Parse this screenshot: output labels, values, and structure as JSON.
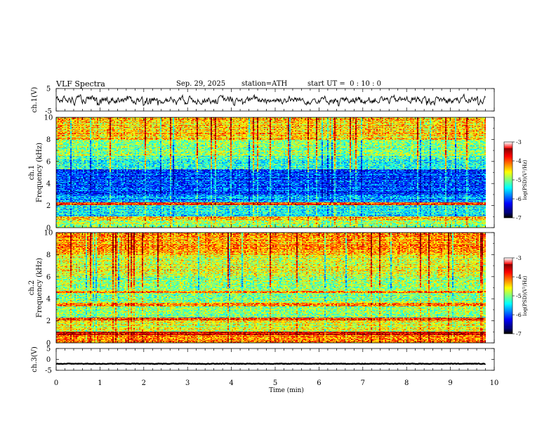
{
  "header": {
    "title": "VLF Spectra",
    "date": "Sep. 29, 2025",
    "station": "station=ATH",
    "start_ut": "start UT =  0 : 10 : 0"
  },
  "chart_data": [
    {
      "type": "line",
      "name": "ch1-waveform",
      "ylabel": "ch.1(V)",
      "ylim": [
        -5,
        5
      ],
      "yticks": [
        "5",
        "-5"
      ],
      "xlim": [
        0,
        10
      ],
      "data_extent_min": 9.8,
      "mean": 0.0,
      "amplitude": 2.0
    },
    {
      "type": "heatmap",
      "name": "ch1-spectrogram",
      "ylabel": "ch.1\nFrequency (kHz)",
      "ylim": [
        0,
        10
      ],
      "yticks": [
        "0",
        "2",
        "4",
        "6",
        "8",
        "10"
      ],
      "xlim": [
        0,
        10
      ],
      "colorbar": {
        "label": "log(PSD)(V²/Hz)",
        "range": [
          -7,
          -3
        ],
        "ticks": [
          "-3",
          "-4",
          "-5",
          "-6",
          "-7"
        ]
      },
      "bands": [
        {
          "f": [
            0.0,
            0.6
          ],
          "level": -4.8
        },
        {
          "f": [
            0.6,
            1.0
          ],
          "level": -4.2
        },
        {
          "f": [
            1.0,
            2.0
          ],
          "level": -5.5
        },
        {
          "f": [
            2.0,
            2.3
          ],
          "level": -3.8
        },
        {
          "f": [
            2.3,
            3.0
          ],
          "level": -5.9
        },
        {
          "f": [
            3.0,
            5.3
          ],
          "level": -6.2
        },
        {
          "f": [
            5.3,
            6.5
          ],
          "level": -5.3
        },
        {
          "f": [
            6.5,
            8.0
          ],
          "level": -4.9
        },
        {
          "f": [
            8.0,
            10.0
          ],
          "level": -4.3
        }
      ]
    },
    {
      "type": "heatmap",
      "name": "ch2-spectrogram",
      "ylabel": "ch.2\nFrequency (kHz)",
      "ylim": [
        0,
        10
      ],
      "yticks": [
        "0",
        "2",
        "4",
        "6",
        "8",
        "10"
      ],
      "xlim": [
        0,
        10
      ],
      "colorbar": {
        "label": "log(PSD)(V²/Hz)",
        "range": [
          -7,
          -3
        ],
        "ticks": [
          "-3",
          "-4",
          "-5",
          "-6",
          "-7"
        ]
      },
      "bands": [
        {
          "f": [
            0.0,
            0.7
          ],
          "level": -4.0
        },
        {
          "f": [
            0.7,
            1.0
          ],
          "level": -3.4
        },
        {
          "f": [
            1.0,
            2.0
          ],
          "level": -4.6
        },
        {
          "f": [
            2.0,
            2.3
          ],
          "level": -3.7
        },
        {
          "f": [
            2.3,
            3.3
          ],
          "level": -5.0
        },
        {
          "f": [
            3.3,
            3.6
          ],
          "level": -4.0
        },
        {
          "f": [
            3.6,
            4.5
          ],
          "level": -5.0
        },
        {
          "f": [
            4.5,
            4.7
          ],
          "level": -3.8
        },
        {
          "f": [
            4.7,
            6.0
          ],
          "level": -4.9
        },
        {
          "f": [
            6.0,
            8.0
          ],
          "level": -4.6
        },
        {
          "f": [
            8.0,
            10.0
          ],
          "level": -4.1
        }
      ]
    },
    {
      "type": "line",
      "name": "ch3-waveform",
      "ylabel": "ch.3(V)",
      "ylim": [
        -5,
        5
      ],
      "yticks": [
        "5",
        "0",
        "-5"
      ],
      "xlim": [
        0,
        10
      ],
      "data_extent_min": 9.8,
      "mean": -2.0,
      "amplitude": 0.15
    }
  ],
  "xaxis": {
    "label": "Time (min)",
    "ticks": [
      "0",
      "1",
      "2",
      "3",
      "4",
      "5",
      "6",
      "7",
      "8",
      "9",
      "10"
    ]
  }
}
